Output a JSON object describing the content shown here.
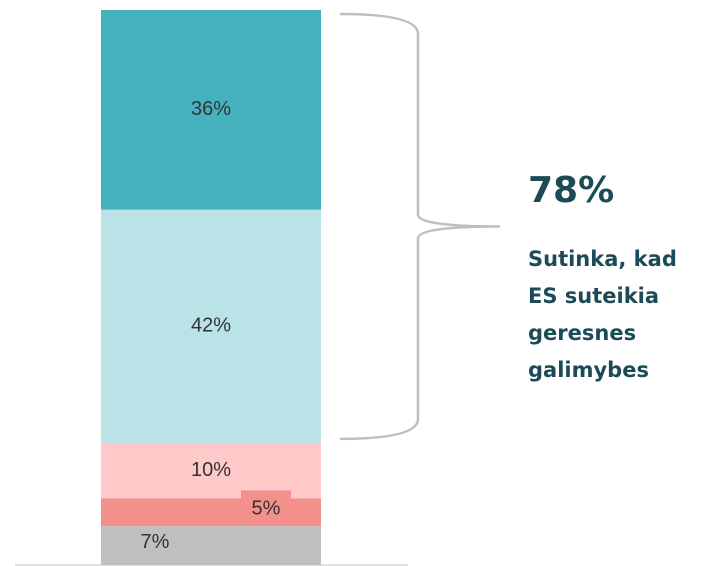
{
  "chart_data": {
    "type": "bar",
    "stacked": true,
    "series": [
      {
        "color": "#45b3be",
        "values": [
          36
        ],
        "value_labels": [
          "36%"
        ]
      },
      {
        "color": "#b9e3e6",
        "values": [
          42
        ],
        "value_labels": [
          "42%"
        ]
      },
      {
        "color": "#ffc9c9",
        "values": [
          10
        ],
        "value_labels": [
          "10%"
        ]
      },
      {
        "color": "#f4908c",
        "values": [
          5
        ],
        "value_labels": [
          "5%"
        ]
      },
      {
        "color": "#bfbfbf",
        "values": [
          7
        ],
        "value_labels": [
          "7%"
        ]
      }
    ],
    "ylim": [
      0,
      100
    ],
    "annotation": {
      "value": "78%",
      "text": [
        "Sutinka, kad",
        "ES suteikia",
        "geresnes",
        "galimybes"
      ]
    }
  }
}
